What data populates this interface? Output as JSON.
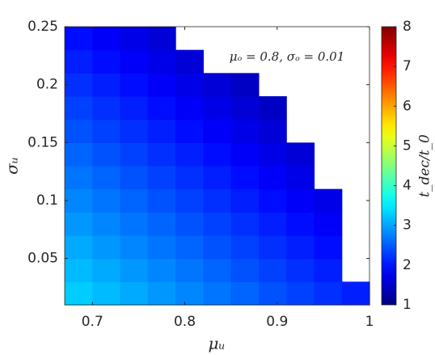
{
  "chart_data": {
    "type": "heatmap",
    "xlabel": "μᵤ",
    "ylabel": "σᵤ",
    "annotation": "μₒ = 0.8, σₒ = 0.01",
    "colorbar_label": "t_dec/t_0",
    "colormap": "jet",
    "xlim": [
      0.67,
      1.0
    ],
    "ylim": [
      0.01,
      0.25
    ],
    "xticks": [
      0.7,
      0.8,
      0.9,
      1
    ],
    "yticks": [
      0.05,
      0.1,
      0.15,
      0.2,
      0.25
    ],
    "clim": [
      1,
      8
    ],
    "cticks": [
      1,
      2,
      3,
      4,
      5,
      6,
      7,
      8
    ],
    "x": [
      0.685,
      0.715,
      0.745,
      0.775,
      0.805,
      0.835,
      0.865,
      0.895,
      0.925,
      0.955,
      0.985
    ],
    "y": [
      0.02,
      0.04,
      0.06,
      0.08,
      0.1,
      0.12,
      0.14,
      0.16,
      0.18,
      0.2,
      0.22,
      0.24
    ],
    "values": [
      [
        3.28,
        3.16,
        3.04,
        2.92,
        2.8,
        2.68,
        2.56,
        2.44,
        2.32,
        2.2,
        2.08
      ],
      [
        3.16,
        3.04,
        2.92,
        2.8,
        2.68,
        2.56,
        2.44,
        2.32,
        2.2,
        2.08,
        null
      ],
      [
        3.04,
        2.92,
        2.8,
        2.68,
        2.56,
        2.44,
        2.32,
        2.2,
        2.08,
        1.96,
        null
      ],
      [
        2.92,
        2.8,
        2.68,
        2.56,
        2.44,
        2.32,
        2.2,
        2.08,
        1.96,
        1.84,
        null
      ],
      [
        2.8,
        2.68,
        2.56,
        2.44,
        2.32,
        2.2,
        2.08,
        1.96,
        1.84,
        1.72,
        null
      ],
      [
        2.68,
        2.56,
        2.44,
        2.32,
        2.2,
        2.08,
        1.96,
        1.84,
        1.72,
        null,
        null
      ],
      [
        2.56,
        2.44,
        2.32,
        2.2,
        2.08,
        1.96,
        1.84,
        1.72,
        1.6,
        null,
        null
      ],
      [
        2.44,
        2.32,
        2.2,
        2.08,
        1.96,
        1.84,
        1.72,
        1.6,
        null,
        null,
        null
      ],
      [
        2.32,
        2.2,
        2.08,
        1.96,
        1.84,
        1.72,
        1.6,
        1.48,
        null,
        null,
        null
      ],
      [
        2.2,
        2.08,
        1.96,
        1.84,
        1.72,
        1.6,
        1.48,
        null,
        null,
        null,
        null
      ],
      [
        2.08,
        1.96,
        1.84,
        1.72,
        1.6,
        null,
        null,
        null,
        null,
        null,
        null
      ],
      [
        1.96,
        1.84,
        1.72,
        1.6,
        null,
        null,
        null,
        null,
        null,
        null,
        null
      ]
    ]
  }
}
